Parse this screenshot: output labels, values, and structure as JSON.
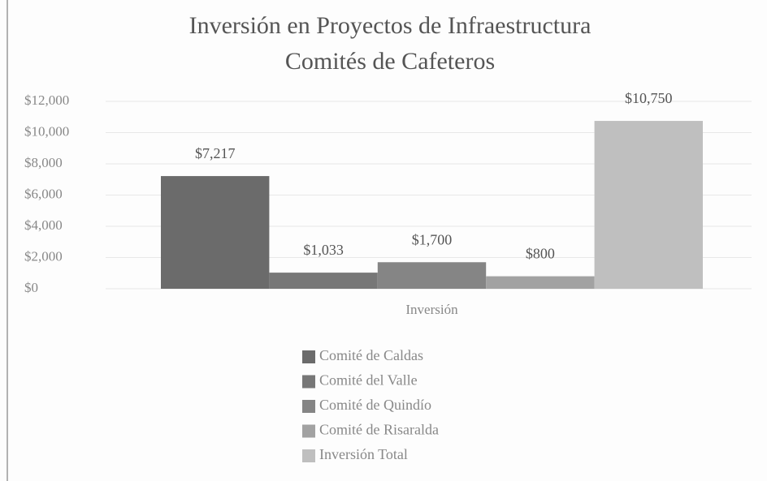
{
  "chart_data": {
    "type": "bar",
    "title": "Inversión en Proyectos de Infraestructura",
    "subtitle": "Comités de Cafeteros",
    "categories": [
      "Inversión"
    ],
    "series": [
      {
        "name": "Comité de Caldas",
        "color": "#6b6b6b",
        "values": [
          7217
        ],
        "value_labels": [
          "$7,217"
        ]
      },
      {
        "name": "Comité del Valle",
        "color": "#777777",
        "values": [
          1033
        ],
        "value_labels": [
          "$1,033"
        ]
      },
      {
        "name": "Comité de Quindío",
        "color": "#858585",
        "values": [
          1700
        ],
        "value_labels": [
          "$1,700"
        ]
      },
      {
        "name": "Comité de Risaralda",
        "color": "#a2a2a2",
        "values": [
          800
        ],
        "value_labels": [
          "$800"
        ]
      },
      {
        "name": "Inversión Total",
        "color": "#bfbfbf",
        "values": [
          10750
        ],
        "value_labels": [
          "$10,750"
        ]
      }
    ],
    "ylim": [
      0,
      12000
    ],
    "yticks": [
      {
        "value": 0,
        "label": "$0"
      },
      {
        "value": 2000,
        "label": "$2,000"
      },
      {
        "value": 4000,
        "label": "$4,000"
      },
      {
        "value": 6000,
        "label": "$6,000"
      },
      {
        "value": 8000,
        "label": "$8,000"
      },
      {
        "value": 10000,
        "label": "$10,000"
      },
      {
        "value": 12000,
        "label": "$12,000"
      }
    ],
    "grid": true
  }
}
